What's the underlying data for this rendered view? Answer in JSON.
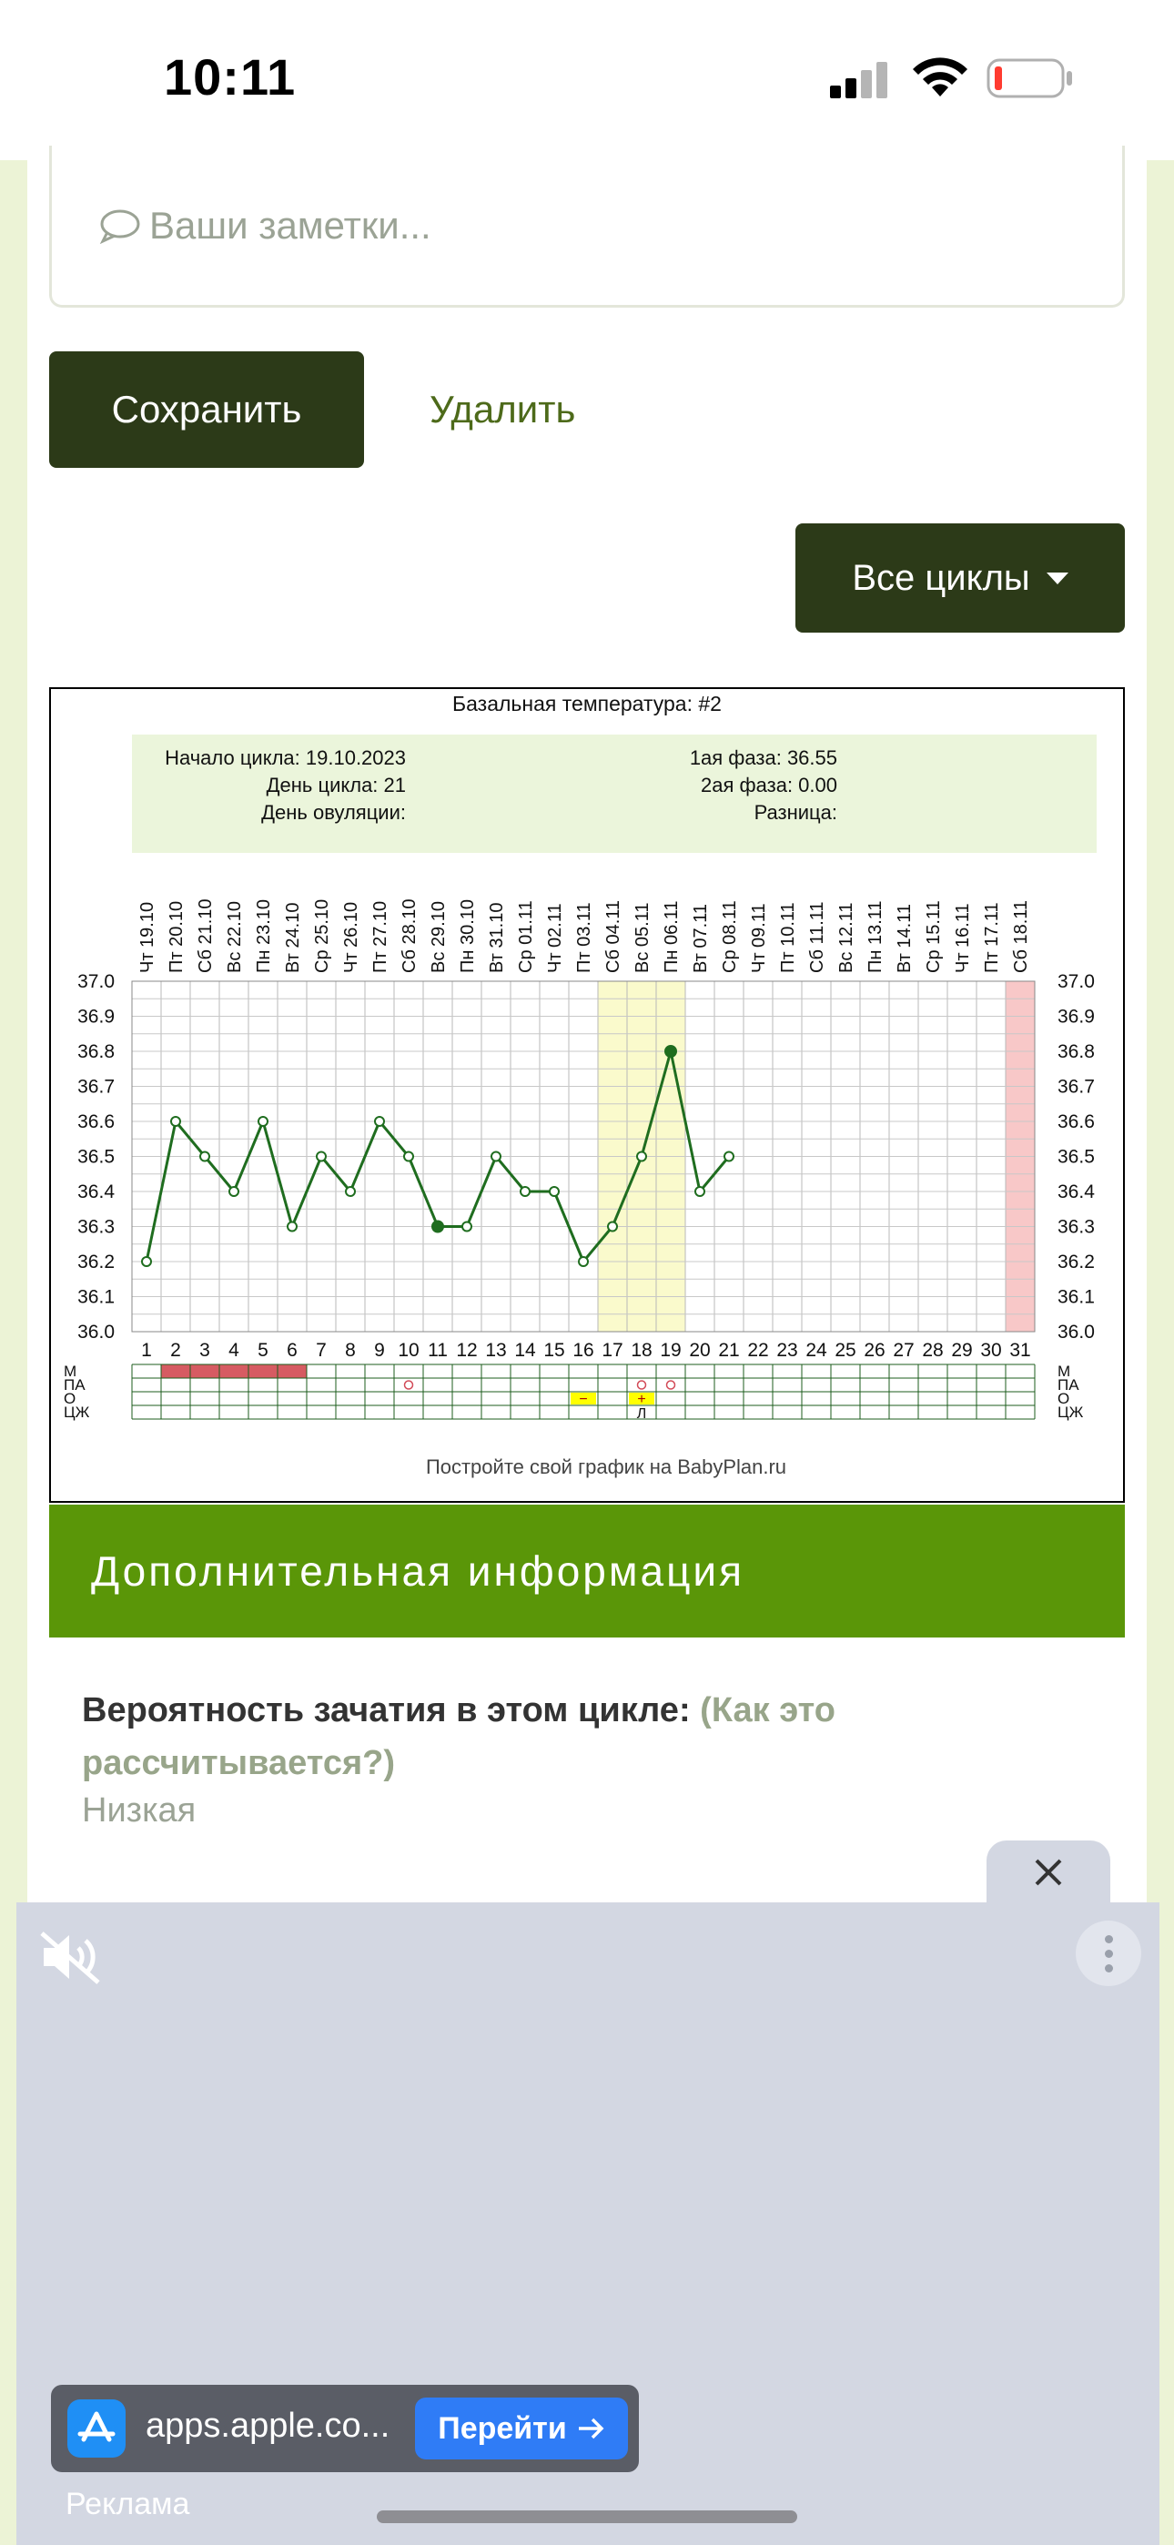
{
  "status": {
    "time": "10:11"
  },
  "notes": {
    "placeholder": "Ваши заметки..."
  },
  "buttons": {
    "save": "Сохранить",
    "delete": "Удалить",
    "cycles": "Все циклы"
  },
  "chart_data": {
    "type": "line",
    "title": "Базальная температура: #2",
    "info_left": [
      "Начало цикла: 19.10.2023",
      "День цикла: 21",
      "День овуляции:"
    ],
    "info_right": [
      "1ая фаза: 36.55",
      "2ая фаза: 0.00",
      "Разница:"
    ],
    "x_day_numbers": [
      "1",
      "2",
      "3",
      "4",
      "5",
      "6",
      "7",
      "8",
      "9",
      "10",
      "11",
      "12",
      "13",
      "14",
      "15",
      "16",
      "17",
      "18",
      "19",
      "20",
      "21",
      "22",
      "23",
      "24",
      "25",
      "26",
      "27",
      "28",
      "29",
      "30",
      "31"
    ],
    "x_dates": [
      "Чт 19.10",
      "Пт 20.10",
      "Сб 21.10",
      "Вс 22.10",
      "Пн 23.10",
      "Вт 24.10",
      "Ср 25.10",
      "Чт 26.10",
      "Пт 27.10",
      "Сб 28.10",
      "Вс 29.10",
      "Пн 30.10",
      "Вт 31.10",
      "Ср 01.11",
      "Чт 02.11",
      "Пт 03.11",
      "Сб 04.11",
      "Вс 05.11",
      "Пн 06.11",
      "Вт 07.11",
      "Ср 08.11",
      "Чт 09.11",
      "Пт 10.11",
      "Сб 11.11",
      "Вс 12.11",
      "Пн 13.11",
      "Вт 14.11",
      "Ср 15.11",
      "Чт 16.11",
      "Пт 17.11",
      "Сб 18.11"
    ],
    "y_ticks": [
      "36.0",
      "36.1",
      "36.2",
      "36.3",
      "36.4",
      "36.5",
      "36.6",
      "36.7",
      "36.8",
      "36.9",
      "37.0"
    ],
    "ylim": [
      36.0,
      37.0
    ],
    "series": [
      {
        "values": [
          36.2,
          36.6,
          36.5,
          36.4,
          36.6,
          36.3,
          36.5,
          36.4,
          36.6,
          36.5,
          36.3,
          36.3,
          36.5,
          36.4,
          36.4,
          36.2,
          36.3,
          36.5,
          36.8,
          36.4,
          36.5
        ]
      }
    ],
    "filled_points_days": [
      11,
      19
    ],
    "highlight_days": [
      17,
      18,
      19
    ],
    "pink_days": [
      31
    ],
    "row_labels": [
      "М",
      "ПА",
      "О",
      "ЦЖ"
    ],
    "menstruation_days": [
      2,
      3,
      4,
      5,
      6
    ],
    "pa_circle_days": [
      10,
      18,
      19
    ],
    "o_marks": [
      {
        "day": 16,
        "sign": "−"
      },
      {
        "day": 18,
        "sign": "+"
      }
    ],
    "cz_marks": [
      {
        "day": 18,
        "sign": "Л"
      }
    ],
    "footer": "Постройте свой график на BabyPlan.ru",
    "colors": {
      "line": "#1f6d1f",
      "highlight": "#fafacc",
      "pink": "#f8c8c8",
      "info_bg": "#ebf5db",
      "menstruation": "#d65b62",
      "marker": "#ffff00"
    }
  },
  "section": {
    "title": "Дополнительная информация"
  },
  "probability": {
    "label": "Вероятность зачатия в этом цикле:",
    "link": "(Как это рассчитывается?)",
    "value": "Низкая"
  },
  "ad": {
    "url": "apps.apple.co...",
    "go": "Перейти",
    "label": "Реклама"
  }
}
